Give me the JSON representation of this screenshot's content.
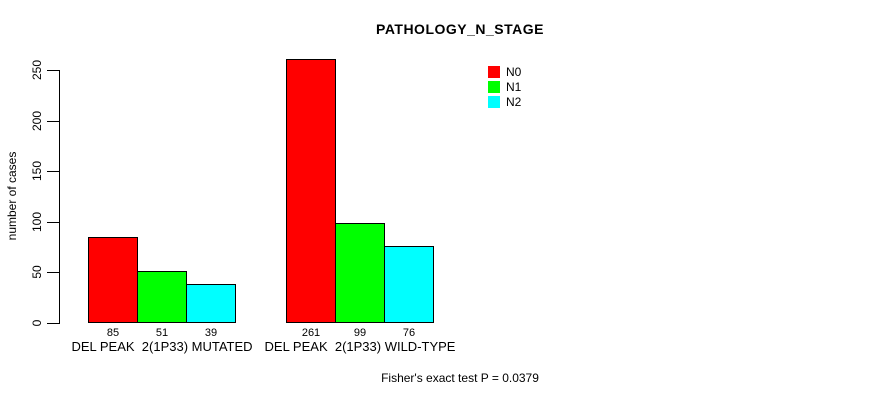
{
  "chart_data": {
    "type": "bar",
    "title": "PATHOLOGY_N_STAGE",
    "xlabel": "",
    "ylabel": "number of cases",
    "ylim": [
      0,
      250
    ],
    "yticks": [
      0,
      50,
      100,
      150,
      200,
      250
    ],
    "grid": false,
    "legend_position": "top-right-inside",
    "categories": [
      "DEL PEAK  2(1P33) MUTATED",
      "DEL PEAK  2(1P33) WILD-TYPE"
    ],
    "series": [
      {
        "name": "N0",
        "color": "#ff0000",
        "values": [
          85,
          261
        ]
      },
      {
        "name": "N1",
        "color": "#00ff00",
        "values": [
          51,
          99
        ]
      },
      {
        "name": "N2",
        "color": "#00ffff",
        "values": [
          39,
          76
        ]
      }
    ],
    "bar_value_labels": true,
    "annotation": "Fisher's exact test P = 0.0379"
  },
  "colors": {
    "axis": "#000000",
    "bar_border": "#000000",
    "background": "#ffffff"
  }
}
